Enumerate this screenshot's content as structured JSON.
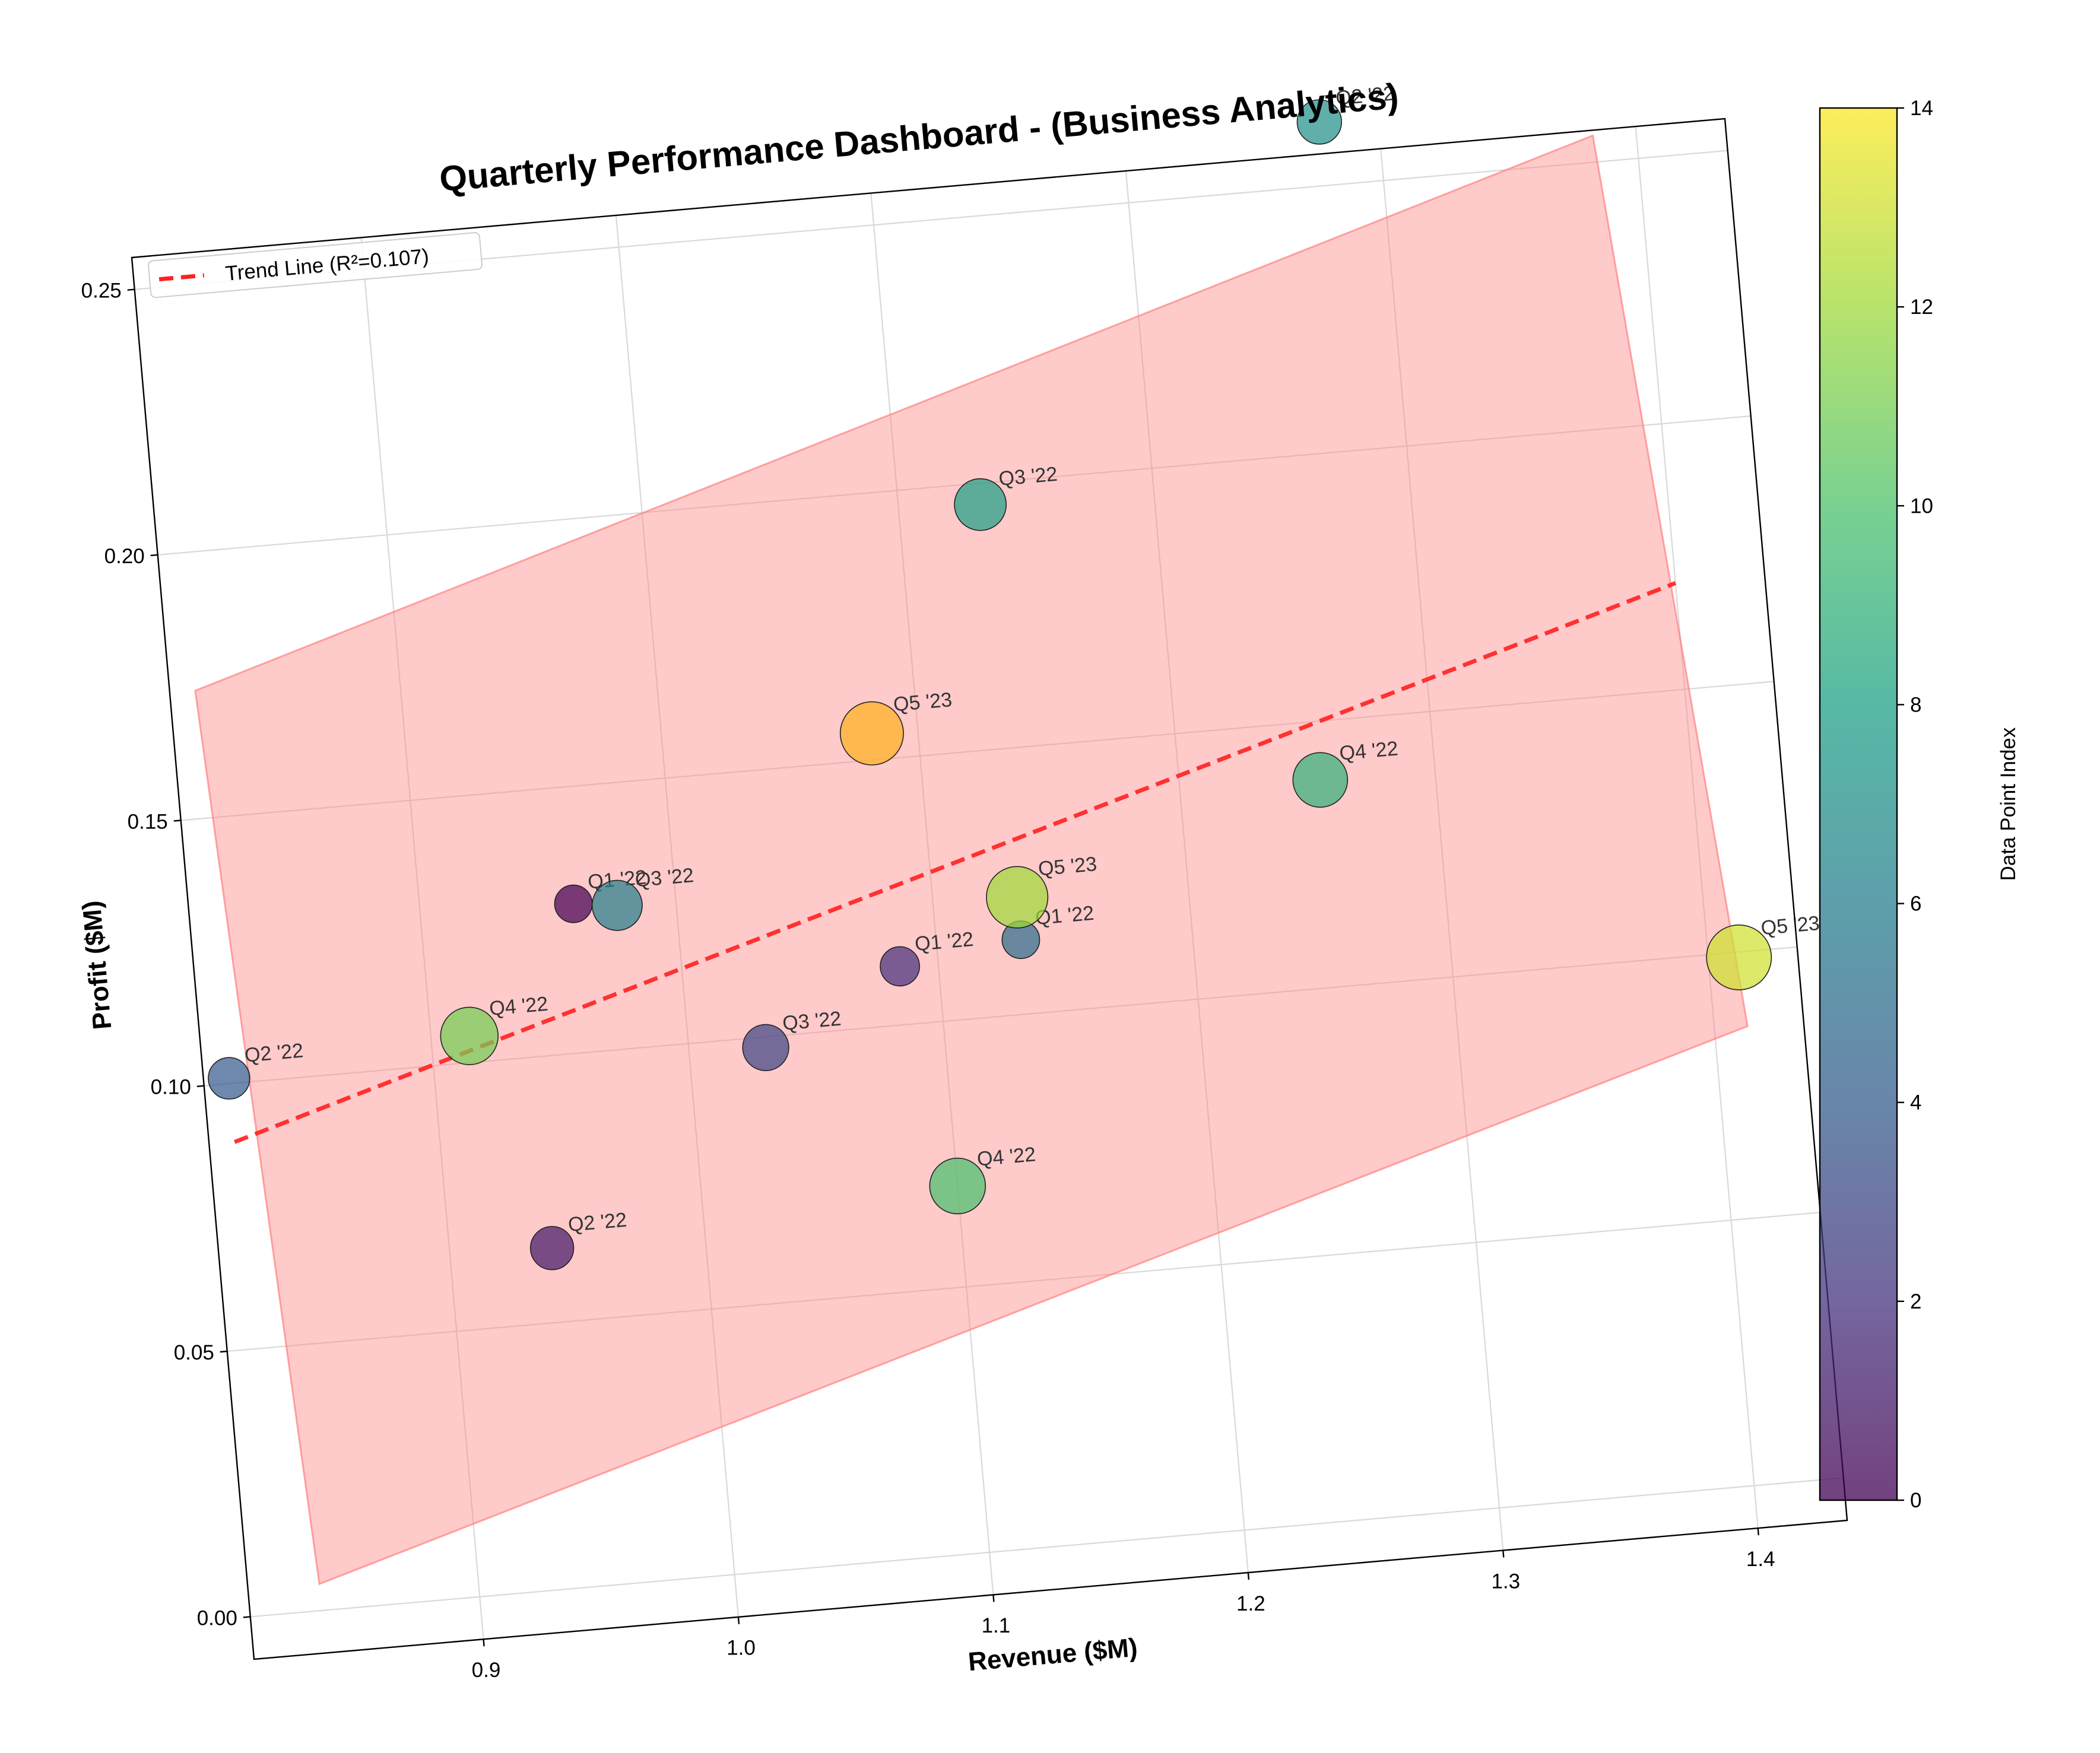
{
  "chart_data": {
    "type": "scatter",
    "title": "Quarterly Performance Dashboard - (Business Analytics)",
    "xlabel": "Revenue ($M)",
    "ylabel": "Profit ($M)",
    "xlim": [
      0.81,
      1.435
    ],
    "ylim": [
      -0.008,
      0.256
    ],
    "xticks": [
      "0.9",
      "1.0",
      "1.1",
      "1.2",
      "1.3",
      "1.4"
    ],
    "yticks": [
      "0.00",
      "0.05",
      "0.10",
      "0.15",
      "0.20",
      "0.25"
    ],
    "grid": true,
    "legend": {
      "label": "Trend Line (R²=0.107)",
      "placement": "upper left"
    },
    "colorbar": {
      "label": "Data Point Index",
      "range": [
        0,
        14
      ],
      "ticks": [
        "0",
        "2",
        "4",
        "6",
        "8",
        "10",
        "12",
        "14"
      ],
      "colormap": "viridis"
    },
    "points": [
      {
        "index": 0,
        "label": "Q1 '22",
        "x": 0.96,
        "y": 0.128,
        "size": 0.2
      },
      {
        "index": 1,
        "label": "Q2 '22",
        "x": 0.94,
        "y": 0.064,
        "size": 0.3
      },
      {
        "index": 2,
        "label": "Q1 '22",
        "x": 1.085,
        "y": 0.111,
        "size": 0.23
      },
      {
        "index": 3,
        "label": "Q3 '22",
        "x": 1.03,
        "y": 0.098,
        "size": 0.35
      },
      {
        "index": 4,
        "label": "Q2 '22",
        "x": 0.82,
        "y": 0.101,
        "size": 0.27
      },
      {
        "index": 5,
        "label": "Q1 '22",
        "x": 1.133,
        "y": 0.114,
        "size": 0.2
      },
      {
        "index": 6,
        "label": "Q3 '22",
        "x": 0.977,
        "y": 0.127,
        "size": 0.42
      },
      {
        "index": 7,
        "label": "Q2 '22",
        "x": 1.277,
        "y": 0.262,
        "size": 0.32
      },
      {
        "index": 8,
        "label": "Q3 '22",
        "x": 1.132,
        "y": 0.196,
        "size": 0.45
      },
      {
        "index": 9,
        "label": "Q4 '22",
        "x": 1.255,
        "y": 0.139,
        "size": 0.5
      },
      {
        "index": 10,
        "label": "Q4 '22",
        "x": 1.1,
        "y": 0.069,
        "size": 0.52
      },
      {
        "index": 11,
        "label": "Q4 '22",
        "x": 0.915,
        "y": 0.105,
        "size": 0.55
      },
      {
        "index": 12,
        "label": "Q5 '23",
        "x": 1.133,
        "y": 0.122,
        "size": 0.62
      },
      {
        "index": 13,
        "label": "Q5 '23",
        "x": 1.412,
        "y": 0.099,
        "size": 0.68
      },
      {
        "index": 14,
        "label": "Q5 '23",
        "x": 1.082,
        "y": 0.155,
        "size": 0.65,
        "color": "#ffb020"
      }
    ],
    "trend_line": {
      "x": [
        0.82,
        1.4
      ],
      "y": [
        0.089,
        0.17
      ],
      "color": "#ff2020",
      "style": "dashed"
    },
    "confidence_band": {
      "polygon": [
        [
          0.82,
          0.174
        ],
        [
          1.383,
          0.255
        ],
        [
          1.413,
          0.086
        ],
        [
          0.838,
          0.005
        ]
      ],
      "color": "#ff8080"
    }
  }
}
